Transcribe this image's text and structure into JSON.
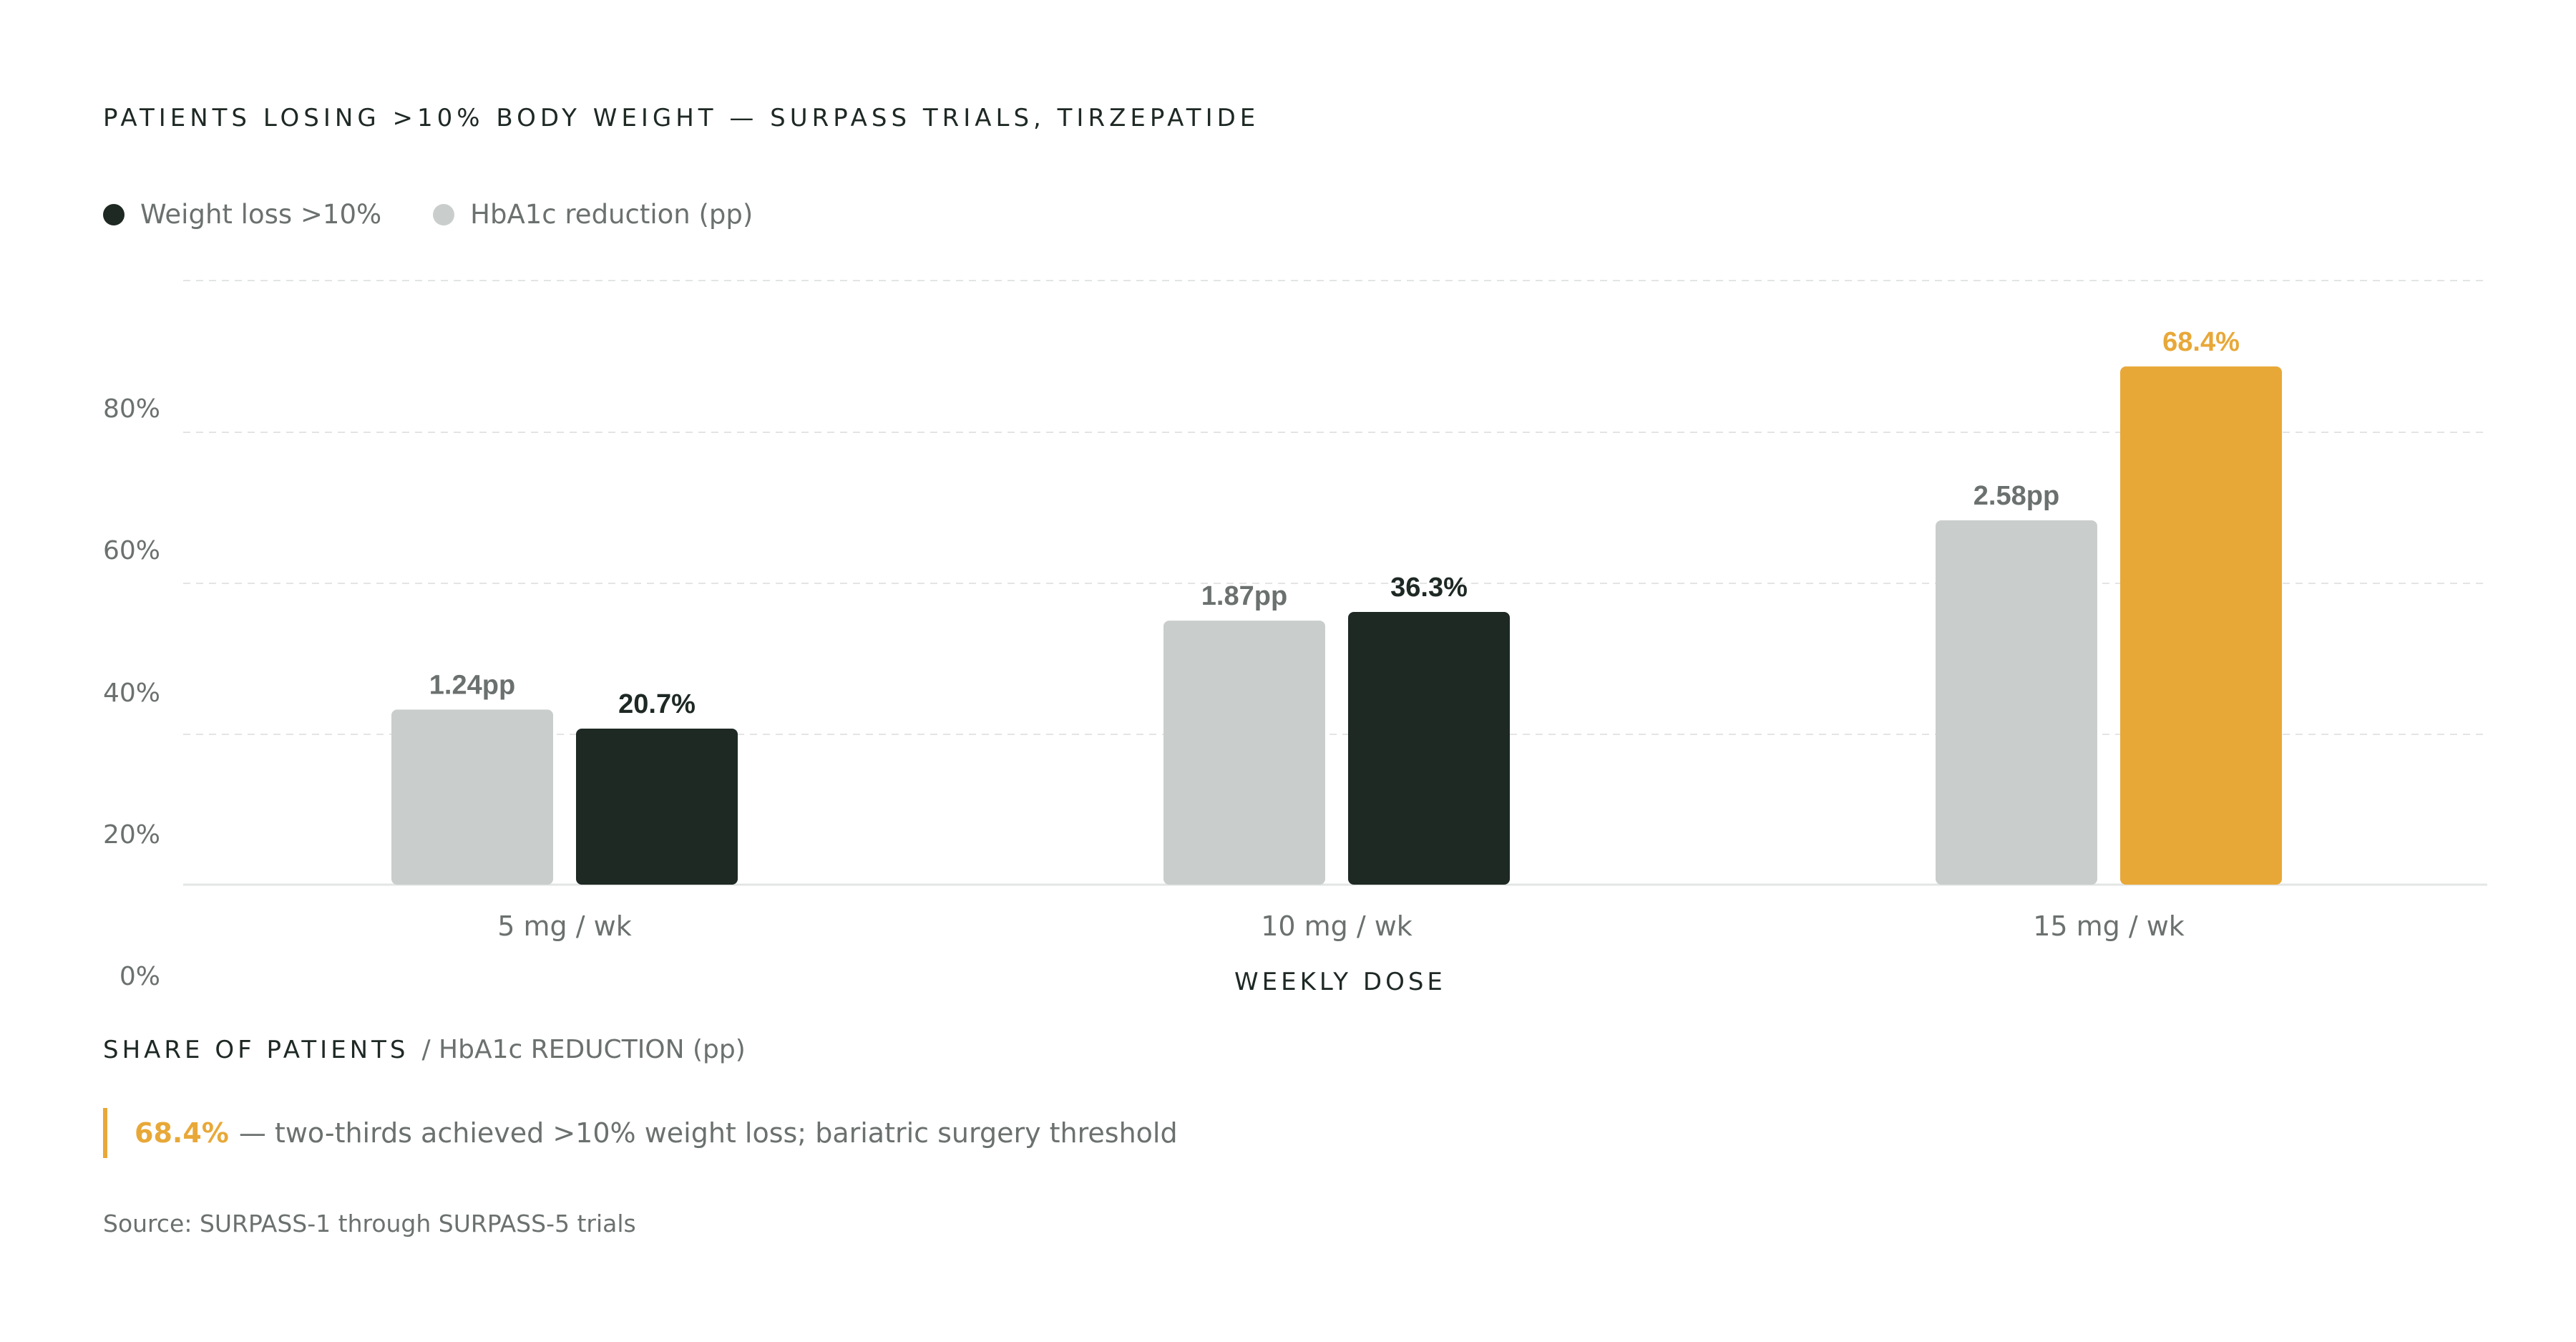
{
  "title": "PATIENTS LOSING >10% BODY WEIGHT — SURPASS TRIALS, TIRZEPATIDE",
  "legend": [
    {
      "label": "Weight loss >10%",
      "color": "#1e2924"
    },
    {
      "label": "HbA1c reduction (pp)",
      "color": "#c9cdcb"
    }
  ],
  "chart_data": {
    "type": "bar",
    "title": "PATIENTS LOSING >10% BODY WEIGHT — SURPASS TRIALS, TIRZEPATIDE",
    "categories": [
      "5 mg / wk",
      "10 mg / wk",
      "15 mg / wk"
    ],
    "series": [
      {
        "name": "HbA1c reduction (pp)",
        "values": [
          1.24,
          1.87,
          2.58
        ],
        "labels": [
          "1.24pp",
          "1.87pp",
          "2.58pp"
        ],
        "color": "#c9cdcb",
        "label_color": "#6b716e"
      },
      {
        "name": "Weight loss >10%",
        "values": [
          20.7,
          36.3,
          68.4
        ],
        "labels": [
          "20.7%",
          "36.3%",
          "68.4%"
        ],
        "color": "#1e2924",
        "label_color": "#1e2924",
        "highlight_index": 2,
        "highlight_color": "#e8a838"
      }
    ],
    "y_ticks": [
      "0%",
      "20%",
      "40%",
      "60%",
      "80%"
    ],
    "xlabel": "WEEKLY DOSE",
    "ylabel": "SHARE OF PATIENTS",
    "ylabel_secondary": "/ HbA1c REDUCTION (pp)",
    "grid": true,
    "legend_position": "top-left"
  },
  "x_axis_title": "WEEKLY DOSE",
  "y_axis_title": {
    "main": "SHARE OF PATIENTS",
    "sub": "/ HbA1c REDUCTION (pp)"
  },
  "callout": {
    "value": "68.4%",
    "text": "— two-thirds achieved >10% weight loss; bariatric surgery threshold"
  },
  "source": "Source: SURPASS-1 through SURPASS-5 trials",
  "colors": {
    "accent": "#e8a838",
    "dark": "#1e2924",
    "light_bar": "#c9cdcb",
    "muted_text": "#6b716e",
    "grid": "#e3e5e4"
  }
}
